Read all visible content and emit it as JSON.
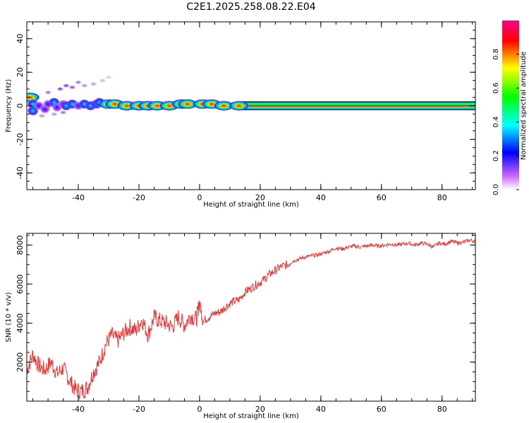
{
  "chart_data": [
    {
      "type": "heatmap",
      "title": "C2E1.2025.258.08.22.E04",
      "xlabel": "Height of straight line (km)",
      "ylabel": "Frequency (Hz)",
      "xlim": [
        -57,
        91
      ],
      "ylim": [
        -50,
        50
      ],
      "xticks": [
        -40,
        -20,
        0,
        20,
        40,
        60,
        80
      ],
      "yticks": [
        -40,
        -20,
        0,
        20,
        40
      ],
      "colorbar": {
        "label": "Normalized spectral amplitude",
        "range": [
          0,
          1
        ],
        "ticks": [
          "0.0",
          "0.2",
          "0.4",
          "0.6",
          "0.8"
        ],
        "colors": [
          "#ffffff",
          "#cc66ff",
          "#0000ff",
          "#00ffff",
          "#00ff00",
          "#ffff00",
          "#ff0000",
          "#ff0088"
        ]
      },
      "band": {
        "frequency_center": 0,
        "half_width": 2,
        "dominant_colors": [
          "#00ff66",
          "#ff2222"
        ]
      },
      "blobs": [
        {
          "x": -56,
          "f": 5,
          "a": 0.6
        },
        {
          "x": -55,
          "f": 1,
          "a": 0.35
        },
        {
          "x": -55,
          "f": -3,
          "a": 0.3
        },
        {
          "x": -53,
          "f": 0,
          "a": 0.25
        },
        {
          "x": -51,
          "f": -2,
          "a": 0.2
        },
        {
          "x": -50,
          "f": 1,
          "a": 0.15
        },
        {
          "x": -48,
          "f": 2,
          "a": 0.4
        },
        {
          "x": -47,
          "f": -1,
          "a": 0.2
        },
        {
          "x": -45,
          "f": 1,
          "a": 0.2
        },
        {
          "x": -44,
          "f": 0,
          "a": 0.35
        },
        {
          "x": -42,
          "f": 1,
          "a": 0.3
        },
        {
          "x": -40,
          "f": 0,
          "a": 0.25
        },
        {
          "x": -38,
          "f": 1,
          "a": 0.3
        },
        {
          "x": -36,
          "f": 0,
          "a": 0.45
        },
        {
          "x": -34,
          "f": 1,
          "a": 0.5
        },
        {
          "x": -33,
          "f": 2,
          "a": 0.3
        },
        {
          "x": -30,
          "f": 1,
          "a": 0.9
        },
        {
          "x": -28,
          "f": 1,
          "a": 0.9
        },
        {
          "x": -24,
          "f": 0,
          "a": 0.85
        },
        {
          "x": -20,
          "f": 0,
          "a": 0.85
        },
        {
          "x": -17,
          "f": 0,
          "a": 0.6
        },
        {
          "x": -14,
          "f": 0,
          "a": 0.85
        },
        {
          "x": -10,
          "f": 0,
          "a": 0.8
        },
        {
          "x": -6,
          "f": 1,
          "a": 0.7
        },
        {
          "x": -4,
          "f": 1,
          "a": 0.9
        },
        {
          "x": 1,
          "f": 1,
          "a": 0.75
        },
        {
          "x": 4,
          "f": 1,
          "a": 0.85
        },
        {
          "x": 8,
          "f": 0,
          "a": 0.7
        },
        {
          "x": 13,
          "f": 0,
          "a": 0.75
        }
      ],
      "scatter_noise": [
        {
          "x": -50,
          "f": 8,
          "a": 0.15
        },
        {
          "x": -46,
          "f": 10,
          "a": 0.2
        },
        {
          "x": -44,
          "f": 12,
          "a": 0.2
        },
        {
          "x": -42,
          "f": 11,
          "a": 0.18
        },
        {
          "x": -40,
          "f": 14,
          "a": 0.15
        },
        {
          "x": -38,
          "f": 12,
          "a": 0.12
        },
        {
          "x": -35,
          "f": 13,
          "a": 0.1
        },
        {
          "x": -32,
          "f": 15,
          "a": 0.08
        },
        {
          "x": -30,
          "f": 17,
          "a": 0.06
        },
        {
          "x": -48,
          "f": -5,
          "a": 0.12
        },
        {
          "x": -45,
          "f": -4,
          "a": 0.15
        },
        {
          "x": -52,
          "f": -6,
          "a": 0.12
        }
      ]
    },
    {
      "type": "line",
      "title": "",
      "xlabel": "Height of straight line (km)",
      "ylabel": "SNR (10 * v/v)",
      "xlim": [
        -57,
        91
      ],
      "ylim": [
        0,
        8600
      ],
      "xticks": [
        -40,
        -20,
        0,
        20,
        40,
        60,
        80
      ],
      "yticks": [
        2000,
        4000,
        6000,
        8000
      ],
      "color": "#ee3333",
      "series": [
        {
          "x": [
            -57,
            -55,
            -53,
            -51,
            -49,
            -47,
            -45,
            -43,
            -41,
            -39,
            -37,
            -35,
            -33,
            -31,
            -29,
            -27,
            -25,
            -23,
            -21,
            -19,
            -17,
            -15,
            -13,
            -11,
            -9,
            -7,
            -5,
            -3,
            -1,
            0,
            1,
            3,
            5,
            7,
            9,
            11,
            13,
            15,
            17,
            19,
            21,
            23,
            25,
            27,
            29,
            31,
            33,
            35,
            37,
            39,
            41,
            43,
            45,
            47,
            49,
            51,
            53,
            55,
            57,
            59,
            61,
            63,
            65,
            67,
            69,
            71,
            73,
            75,
            77,
            79,
            81,
            83,
            85,
            87,
            89,
            91
          ],
          "y": [
            1600,
            2400,
            1800,
            1600,
            2000,
            1400,
            1700,
            1100,
            600,
            500,
            700,
            1500,
            2000,
            2900,
            3400,
            3100,
            3500,
            3800,
            3600,
            4200,
            3400,
            4300,
            4100,
            4000,
            3800,
            4300,
            3900,
            4400,
            4200,
            5100,
            4100,
            4300,
            4500,
            4600,
            4900,
            5100,
            5200,
            5600,
            5800,
            6000,
            6200,
            6500,
            6700,
            6900,
            7000,
            7200,
            7300,
            7400,
            7450,
            7500,
            7600,
            7700,
            7850,
            7800,
            7900,
            7950,
            7900,
            7950,
            8000,
            7950,
            8000,
            8050,
            8000,
            8050,
            8100,
            8000,
            8100,
            8050,
            7900,
            8100,
            8050,
            8200,
            8100,
            8150,
            8250,
            8200
          ]
        }
      ]
    }
  ]
}
